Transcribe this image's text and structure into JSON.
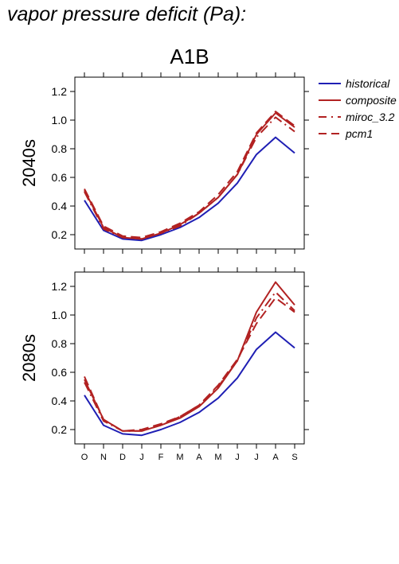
{
  "figure": {
    "title": "vapor pressure deficit (Pa):"
  },
  "chart_data": [
    {
      "type": "line",
      "title": "A1B",
      "ylabel": "2040s",
      "xlabel": "",
      "categories": [
        "O",
        "N",
        "D",
        "J",
        "F",
        "M",
        "A",
        "M",
        "J",
        "J",
        "A",
        "S"
      ],
      "ylim": [
        0.1,
        1.3
      ],
      "yticks": [
        0.2,
        0.4,
        0.6,
        0.8,
        1.0,
        1.2
      ],
      "ytick_labels": [
        "0.2",
        "0.4",
        "0.6",
        "0.8",
        "1.0",
        "1.2"
      ],
      "series": [
        {
          "name": "historical",
          "color": "#1f1fb4",
          "dash": "solid",
          "values": [
            0.44,
            0.23,
            0.17,
            0.16,
            0.2,
            0.25,
            0.32,
            0.42,
            0.56,
            0.76,
            0.88,
            0.77
          ]
        },
        {
          "name": "composite",
          "color": "#b22222",
          "dash": "solid",
          "values": [
            0.51,
            0.25,
            0.18,
            0.17,
            0.21,
            0.27,
            0.35,
            0.46,
            0.62,
            0.9,
            1.05,
            0.95
          ]
        },
        {
          "name": "miroc_3.2",
          "color": "#b22222",
          "dash": "dashdot",
          "values": [
            0.5,
            0.24,
            0.18,
            0.17,
            0.21,
            0.26,
            0.35,
            0.46,
            0.62,
            0.88,
            1.02,
            0.92
          ]
        },
        {
          "name": "pcm1",
          "color": "#b22222",
          "dash": "dashed",
          "values": [
            0.52,
            0.26,
            0.19,
            0.18,
            0.22,
            0.28,
            0.36,
            0.48,
            0.64,
            0.91,
            1.06,
            0.96
          ]
        }
      ],
      "legend_position": "right"
    },
    {
      "type": "line",
      "title": "",
      "ylabel": "2080s",
      "xlabel": "",
      "categories": [
        "O",
        "N",
        "D",
        "J",
        "F",
        "M",
        "A",
        "M",
        "J",
        "J",
        "A",
        "S"
      ],
      "ylim": [
        0.1,
        1.3
      ],
      "yticks": [
        0.2,
        0.4,
        0.6,
        0.8,
        1.0,
        1.2
      ],
      "ytick_labels": [
        "0.2",
        "0.4",
        "0.6",
        "0.8",
        "1.0",
        "1.2"
      ],
      "series": [
        {
          "name": "historical",
          "color": "#1f1fb4",
          "dash": "solid",
          "values": [
            0.44,
            0.23,
            0.17,
            0.16,
            0.2,
            0.25,
            0.32,
            0.42,
            0.56,
            0.76,
            0.88,
            0.77
          ]
        },
        {
          "name": "composite",
          "color": "#b22222",
          "dash": "solid",
          "values": [
            0.55,
            0.27,
            0.19,
            0.19,
            0.23,
            0.28,
            0.36,
            0.49,
            0.68,
            1.02,
            1.23,
            1.07
          ]
        },
        {
          "name": "miroc_3.2",
          "color": "#b22222",
          "dash": "dashdot",
          "values": [
            0.53,
            0.26,
            0.19,
            0.19,
            0.23,
            0.29,
            0.37,
            0.5,
            0.68,
            0.98,
            1.16,
            1.03
          ]
        },
        {
          "name": "pcm1",
          "color": "#b22222",
          "dash": "dashed",
          "values": [
            0.57,
            0.27,
            0.19,
            0.2,
            0.24,
            0.29,
            0.37,
            0.51,
            0.69,
            0.94,
            1.12,
            1.02
          ]
        }
      ]
    }
  ],
  "legend": {
    "entries": [
      {
        "label": "historical",
        "color": "#1f1fb4",
        "dash": "solid"
      },
      {
        "label": "composite",
        "color": "#b22222",
        "dash": "solid"
      },
      {
        "label": "miroc_3.2",
        "color": "#b22222",
        "dash": "dashdot"
      },
      {
        "label": "pcm1",
        "color": "#b22222",
        "dash": "dashed"
      }
    ]
  }
}
